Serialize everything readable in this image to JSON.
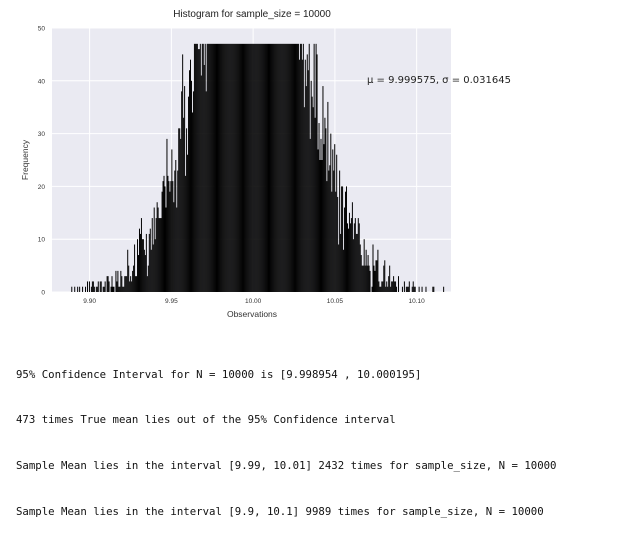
{
  "chart_data": {
    "type": "bar",
    "title": "Histogram for sample_size = 10000",
    "xlabel": "Observations",
    "ylabel": "Frequency",
    "xlim": [
      9.877,
      10.121
    ],
    "ylim": [
      0,
      50
    ],
    "xticks": [
      9.9,
      9.95,
      10.0,
      10.05,
      10.1
    ],
    "xtick_labels": [
      "9.90",
      "9.95",
      "10.00",
      "10.05",
      "10.10"
    ],
    "yticks": [
      0,
      10,
      20,
      30,
      40,
      50
    ],
    "ytick_labels": [
      "0",
      "10",
      "20",
      "30",
      "40",
      "50"
    ],
    "grid": true,
    "background": "#eaeaf2",
    "grid_color": "#ffffff",
    "bar_color": "#000000",
    "annotation": "μ = 9.999575,  σ = 0.031645",
    "mu": 9.999575,
    "sigma": 0.031645,
    "sample_size": 10000,
    "bin_width": 0.0006
  },
  "output": {
    "lines": [
      "95% Confidence Interval for N = 10000 is [9.998954 , 10.000195]",
      "473 times True mean lies out of the 95% Confidence interval",
      "Sample Mean lies in the interval [9.99, 10.01] 2432 times for sample_size, N = 10000",
      "Sample Mean lies in the interval [9.9, 10.1] 9989 times for sample_size, N = 10000"
    ]
  }
}
